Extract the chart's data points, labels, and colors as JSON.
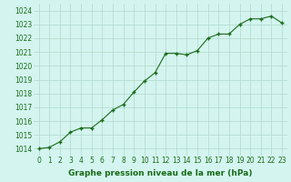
{
  "x": [
    0,
    1,
    2,
    3,
    4,
    5,
    6,
    7,
    8,
    9,
    10,
    11,
    12,
    13,
    14,
    15,
    16,
    17,
    18,
    19,
    20,
    21,
    22,
    23
  ],
  "y": [
    1014.0,
    1014.1,
    1014.5,
    1015.2,
    1015.5,
    1015.5,
    1016.1,
    1016.8,
    1017.2,
    1018.1,
    1018.9,
    1019.5,
    1020.9,
    1020.9,
    1020.8,
    1021.1,
    1022.0,
    1022.3,
    1022.3,
    1023.0,
    1023.4,
    1023.4,
    1023.6,
    1023.1
  ],
  "line_color": "#1a6b1a",
  "marker": "+",
  "marker_size": 3.5,
  "marker_linewidth": 1.0,
  "line_width": 0.8,
  "bg_color": "#d4f5ef",
  "grid_color": "#b0d8cc",
  "xlabel": "Graphe pression niveau de la mer (hPa)",
  "xlabel_color": "#1a6b1a",
  "xlabel_fontsize": 6.5,
  "tick_color": "#1a6b1a",
  "tick_fontsize": 5.5,
  "ylim": [
    1013.5,
    1024.5
  ],
  "yticks": [
    1014,
    1015,
    1016,
    1017,
    1018,
    1019,
    1020,
    1021,
    1022,
    1023,
    1024
  ],
  "xlim": [
    -0.5,
    23.5
  ],
  "xticks": [
    0,
    1,
    2,
    3,
    4,
    5,
    6,
    7,
    8,
    9,
    10,
    11,
    12,
    13,
    14,
    15,
    16,
    17,
    18,
    19,
    20,
    21,
    22,
    23
  ]
}
